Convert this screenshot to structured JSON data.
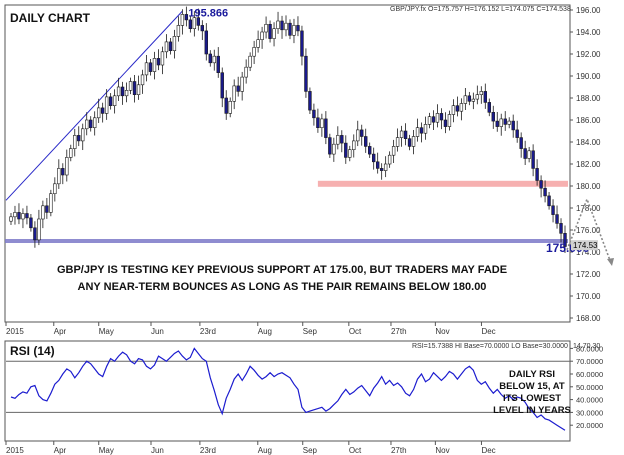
{
  "chart_data": [
    {
      "type": "candlestick",
      "title": "DAILY CHART",
      "symbol_header": "GBP/JPY.fx O=175.757 H=176.152 L=174.075 C=174.538",
      "ylim": [
        168,
        196
      ],
      "y_ticks": [
        "196.00",
        "194.00",
        "192.00",
        "190.00",
        "188.00",
        "186.00",
        "184.00",
        "182.00",
        "180.00",
        "178.00",
        "176.00",
        "174.00",
        "172.00",
        "170.00",
        "168.00"
      ],
      "x_ticks": [
        "2015",
        "Apr",
        "May",
        "Jun",
        "23rd",
        "Aug",
        "Sep",
        "Oct",
        "27th",
        "Nov",
        "Dec"
      ],
      "closes": [
        177.2,
        177.6,
        177.0,
        177.5,
        177.1,
        176.2,
        175.1,
        177.0,
        178.2,
        177.6,
        179.3,
        180.2,
        181.6,
        181.0,
        182.6,
        183.4,
        184.6,
        184.1,
        185.2,
        186.0,
        185.3,
        186.2,
        187.1,
        186.6,
        188.1,
        187.3,
        188.2,
        189.0,
        188.2,
        188.7,
        189.5,
        188.3,
        189.2,
        190.1,
        191.2,
        190.4,
        191.6,
        191.0,
        192.2,
        193.1,
        192.3,
        193.6,
        194.6,
        195.6,
        195.1,
        194.3,
        195.3,
        194.6,
        194.1,
        192.0,
        191.2,
        191.8,
        190.3,
        188.0,
        186.6,
        187.7,
        189.1,
        188.6,
        189.9,
        190.8,
        191.8,
        192.6,
        193.3,
        194.0,
        194.7,
        193.4,
        194.3,
        195.0,
        194.2,
        194.8,
        193.7,
        194.6,
        194.1,
        191.8,
        188.6,
        186.9,
        186.2,
        185.3,
        186.1,
        184.4,
        182.9,
        183.8,
        184.6,
        183.9,
        182.6,
        183.3,
        184.1,
        185.1,
        184.5,
        183.6,
        182.9,
        182.2,
        181.6,
        181.4,
        182.0,
        182.8,
        183.6,
        184.4,
        185.0,
        184.3,
        183.6,
        184.5,
        185.3,
        184.8,
        185.6,
        186.3,
        185.8,
        186.6,
        186.0,
        185.4,
        186.5,
        187.3,
        186.8,
        187.5,
        188.2,
        187.7,
        187.9,
        188.3,
        188.6,
        187.6,
        186.7,
        185.9,
        185.4,
        186.1,
        185.6,
        185.9,
        185.1,
        184.4,
        183.4,
        182.5,
        183.2,
        181.6,
        180.5,
        179.8,
        179.1,
        178.2,
        177.4,
        176.6,
        175.7,
        174.5
      ],
      "annotations": {
        "high_label": "195.866",
        "level_label": "175.000",
        "last_price_label": "174.53",
        "support_level": 175.0,
        "resistance_level": 180.2,
        "message_line1": "GBP/JPY IS TESTING KEY PREVIOUS SUPPORT AT 175.00, BUT TRADERS MAY FADE",
        "message_line2": "ANY NEAR-TERM BOUNCES AS LONG AS THE PAIR REMAINS BELOW 180.00",
        "projection": [
          174.2,
          178.8,
          173.0
        ]
      },
      "colors": {
        "support": "#7b78c8",
        "resistance": "#f5a7a7",
        "bull_candle": "#ffffff",
        "bear_candle": "#1a1a8c",
        "label_blue": "#1a1a9c",
        "trendline": "#2929c8"
      },
      "grid": false
    },
    {
      "type": "line",
      "title": "RSI (14)",
      "header": "RSI=15.7388 HI Base=70.0000 LO Base=30.0000",
      "header_value": "14.70.30",
      "ylim": [
        10,
        85
      ],
      "y_ticks": [
        "80.0000",
        "70.0000",
        "60.0000",
        "50.0000",
        "40.0000",
        "30.0000",
        "20.0000"
      ],
      "x_ticks": [
        "2015",
        "Apr",
        "May",
        "Jun",
        "23rd",
        "Aug",
        "Sep",
        "Oct",
        "27th",
        "Nov",
        "Dec"
      ],
      "levels": [
        70,
        30
      ],
      "values": [
        42,
        41,
        44,
        46,
        45,
        50,
        51,
        43,
        40,
        39,
        45,
        52,
        55,
        60,
        64,
        62,
        57,
        61,
        66,
        70,
        68,
        64,
        60,
        58,
        66,
        72,
        70,
        74,
        77,
        75,
        70,
        68,
        72,
        71,
        66,
        64,
        67,
        74,
        72,
        70,
        73,
        76,
        78,
        74,
        71,
        73,
        80,
        76,
        72,
        70,
        57,
        47,
        36,
        29,
        41,
        48,
        56,
        60,
        55,
        60,
        66,
        63,
        59,
        56,
        58,
        61,
        58,
        60,
        61,
        59,
        57,
        52,
        48,
        34,
        30,
        31,
        32,
        33,
        34,
        31,
        33,
        36,
        39,
        44,
        48,
        44,
        46,
        49,
        51,
        47,
        43,
        49,
        53,
        58,
        52,
        55,
        51,
        53,
        50,
        45,
        43,
        48,
        56,
        60,
        54,
        56,
        61,
        58,
        55,
        58,
        62,
        60,
        56,
        60,
        64,
        66,
        63,
        55,
        52,
        54,
        49,
        45,
        48,
        44,
        41,
        43,
        40,
        42,
        41,
        38,
        33,
        30,
        26,
        28,
        25,
        24,
        22,
        20,
        18,
        16
      ],
      "annotation": [
        "DAILY RSI",
        "BELOW 15, AT",
        "ITS LOWEST",
        "LEVEL IN YEARS"
      ],
      "colors": {
        "line": "#1c1ccf",
        "levels": "#666666"
      },
      "grid": false
    }
  ]
}
